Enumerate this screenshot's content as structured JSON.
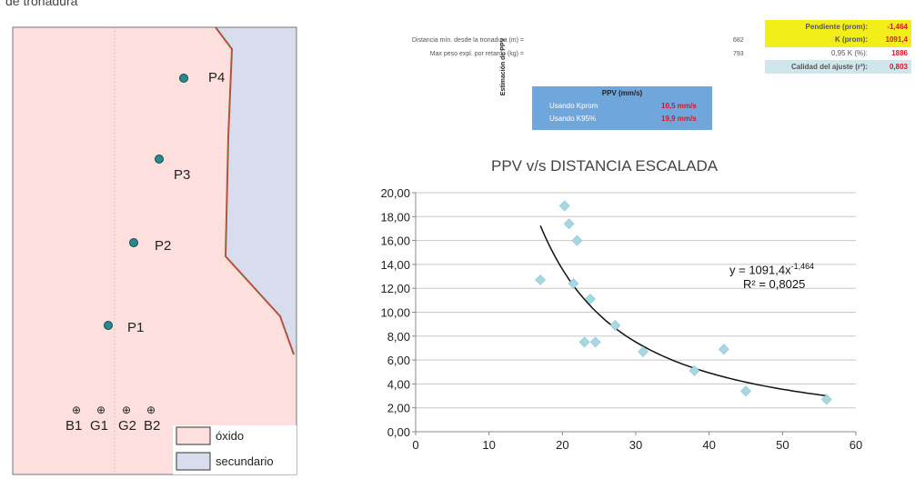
{
  "map": {
    "top_caption": "de tronadura",
    "points": [
      {
        "label": "P4"
      },
      {
        "label": "P3"
      },
      {
        "label": "P2"
      },
      {
        "label": "P1"
      }
    ],
    "markers": [
      {
        "label": "B1"
      },
      {
        "label": "G1"
      },
      {
        "label": "G2"
      },
      {
        "label": "B2"
      }
    ],
    "legend": [
      {
        "label": "óxido",
        "color": "#fde0de"
      },
      {
        "label": "secundario",
        "color": "#d8dcec"
      }
    ],
    "colors": {
      "oxide": "#fde0de",
      "secondary": "#d8dcec",
      "boundary": "#c94a3c",
      "point": "#2a8a8e"
    }
  },
  "params": {
    "vertical_label": "Estimación de PPV",
    "rows": [
      {
        "label": "Distancia mín. desde la tronadura (m) =",
        "value": "682"
      },
      {
        "label": "Max peso expl. por retardo (kg) =",
        "value": "793"
      }
    ],
    "box": [
      {
        "label": "Pendiente (prom):",
        "value": "-1,464"
      },
      {
        "label": "K (prom):",
        "value": "1091,4"
      },
      {
        "label": "0,95 K (%):",
        "value": "1886"
      },
      {
        "label": "Calidad del ajuste (r²):",
        "value": "0,803"
      }
    ],
    "ppv_box": {
      "title": "PPV (mm/s)",
      "rows": [
        {
          "label": "Usando Kprom",
          "value": "10,5 mm/s"
        },
        {
          "label": "Usando K95%",
          "value": "19,9 mm/s"
        }
      ]
    }
  },
  "chart_data": {
    "type": "scatter",
    "title": "PPV v/s DISTANCIA ESCALADA",
    "xlim": [
      0,
      60
    ],
    "ylim": [
      0,
      20
    ],
    "x_ticks": [
      "0",
      "10",
      "20",
      "30",
      "40",
      "50",
      "60"
    ],
    "y_ticks": [
      "0,00",
      "2,00",
      "4,00",
      "6,00",
      "8,00",
      "10,00",
      "12,00",
      "14,00",
      "16,00",
      "18,00",
      "20,00"
    ],
    "grid": "horizontal",
    "marker_color": "#a6d8e3",
    "trend_color": "#111111",
    "points": [
      {
        "x": 17,
        "y": 12.7
      },
      {
        "x": 20.3,
        "y": 18.9
      },
      {
        "x": 20.9,
        "y": 17.4
      },
      {
        "x": 22,
        "y": 16.0
      },
      {
        "x": 21.5,
        "y": 12.4
      },
      {
        "x": 23,
        "y": 7.5
      },
      {
        "x": 24.5,
        "y": 7.5
      },
      {
        "x": 23.8,
        "y": 11.1
      },
      {
        "x": 27.2,
        "y": 8.9
      },
      {
        "x": 31,
        "y": 6.7
      },
      {
        "x": 38,
        "y": 5.1
      },
      {
        "x": 42,
        "y": 6.9
      },
      {
        "x": 45,
        "y": 3.4
      },
      {
        "x": 56,
        "y": 2.7
      }
    ],
    "trendline": {
      "a": 1091.4,
      "b": -1.464,
      "x_from": 17,
      "x_to": 56
    },
    "equation": "y = 1091,4x",
    "equation_exp": "-1,464",
    "r2": "R² = 0,8025"
  }
}
